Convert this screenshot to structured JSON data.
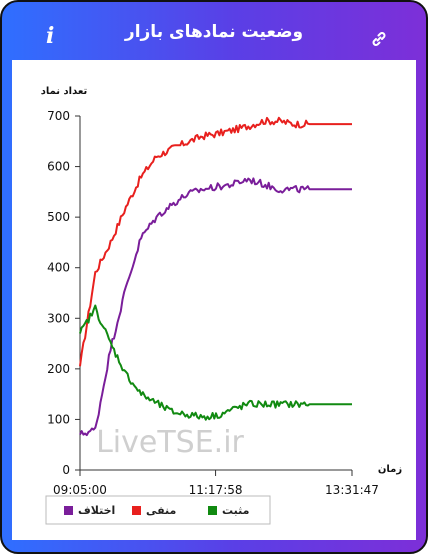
{
  "header": {
    "title": "وضعیت نمادهای بازار",
    "info_icon": "info-icon",
    "link_icon": "link-icon"
  },
  "chart_data": {
    "type": "line",
    "ylabel": "تعداد نماد",
    "xlabel": "زمان",
    "watermark": "LiveTSE.ir",
    "ylim": [
      0,
      700
    ],
    "yticks": [
      0,
      100,
      200,
      300,
      400,
      500,
      600,
      700
    ],
    "xlim": [
      "09:05:00",
      "13:31:47"
    ],
    "xticks": [
      "09:05:00",
      "11:17:58",
      "13:31:47"
    ],
    "x_time": [
      "09:05:00",
      "09:20:00",
      "09:35:00",
      "09:50:00",
      "10:05:00",
      "10:20:00",
      "10:35:00",
      "10:50:00",
      "11:05:00",
      "11:20:00",
      "11:35:00",
      "11:50:00",
      "12:05:00",
      "12:20:00",
      "12:35:00",
      "12:50:00",
      "13:05:00",
      "13:20:00",
      "13:31:47"
    ],
    "series": [
      {
        "name": "منفی",
        "color": "#e8201e",
        "values": [
          205,
          390,
          450,
          520,
          580,
          620,
          635,
          648,
          660,
          665,
          672,
          680,
          690,
          690,
          684,
          684,
          684,
          684,
          684
        ]
      },
      {
        "name": "اختلاف",
        "color": "#7a1e9a",
        "values": [
          70,
          80,
          240,
          360,
          460,
          500,
          525,
          545,
          555,
          560,
          565,
          575,
          565,
          555,
          555,
          555,
          555,
          555,
          555
        ]
      },
      {
        "name": "مثبت",
        "color": "#118a11",
        "values": [
          270,
          320,
          250,
          190,
          150,
          132,
          115,
          110,
          105,
          108,
          120,
          130,
          130,
          130,
          130,
          130,
          130,
          130,
          130
        ]
      }
    ],
    "legend": {
      "placement": "bottom-left",
      "order": [
        "اختلاف",
        "منفی",
        "مثبت"
      ]
    },
    "grid": false
  }
}
